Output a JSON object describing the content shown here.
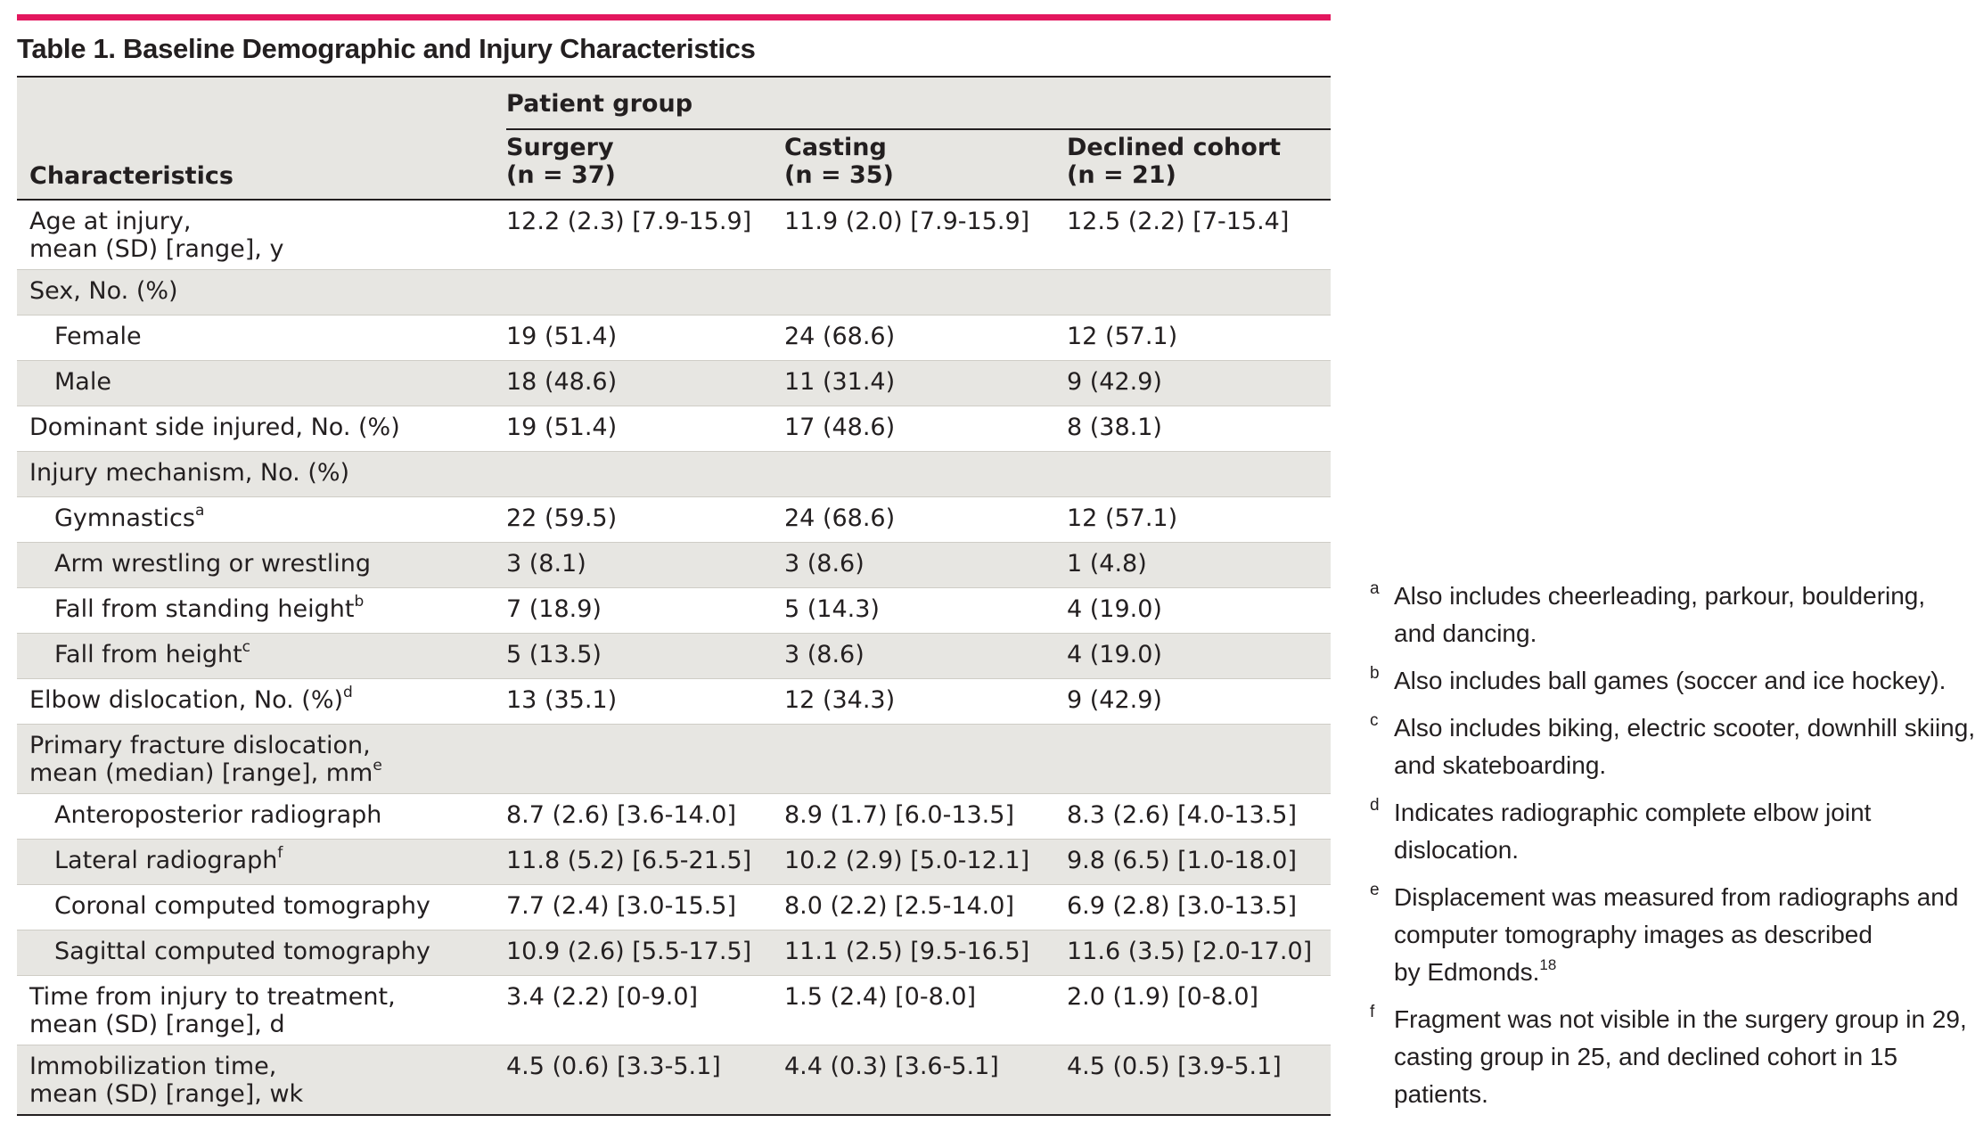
{
  "title": "Table 1. Baseline Demographic and Injury Characteristics",
  "header": {
    "characteristics": "Characteristics",
    "patient_group": "Patient group",
    "columns": [
      {
        "name": "Surgery",
        "n": "(n = 37)"
      },
      {
        "name": "Casting",
        "n": "(n = 35)"
      },
      {
        "name": "Declined cohort",
        "n": "(n = 21)"
      }
    ]
  },
  "rows": [
    {
      "label": [
        "Age at injury,",
        "mean (SD) [range], y"
      ],
      "sup": "",
      "indent": false,
      "shade": false,
      "values": [
        "12.2 (2.3) [7.9-15.9]",
        "11.9 (2.0) [7.9-15.9]",
        "12.5 (2.2) [7-15.4]"
      ]
    },
    {
      "label": [
        "Sex, No. (%)"
      ],
      "sup": "",
      "indent": false,
      "shade": true,
      "values": [
        "",
        "",
        ""
      ]
    },
    {
      "label": [
        "Female"
      ],
      "sup": "",
      "indent": true,
      "shade": false,
      "values": [
        "19 (51.4)",
        "24 (68.6)",
        "12 (57.1)"
      ]
    },
    {
      "label": [
        "Male"
      ],
      "sup": "",
      "indent": true,
      "shade": true,
      "values": [
        "18 (48.6)",
        "11 (31.4)",
        "9 (42.9)"
      ]
    },
    {
      "label": [
        "Dominant side injured, No. (%)"
      ],
      "sup": "",
      "indent": false,
      "shade": false,
      "values": [
        "19 (51.4)",
        "17 (48.6)",
        "8 (38.1)"
      ]
    },
    {
      "label": [
        "Injury mechanism, No. (%)"
      ],
      "sup": "",
      "indent": false,
      "shade": true,
      "values": [
        "",
        "",
        ""
      ]
    },
    {
      "label": [
        "Gymnastics"
      ],
      "sup": "a",
      "indent": true,
      "shade": false,
      "values": [
        "22 (59.5)",
        "24 (68.6)",
        "12 (57.1)"
      ]
    },
    {
      "label": [
        "Arm wrestling or wrestling"
      ],
      "sup": "",
      "indent": true,
      "shade": true,
      "values": [
        "3 (8.1)",
        "3 (8.6)",
        "1 (4.8)"
      ]
    },
    {
      "label": [
        "Fall from standing height"
      ],
      "sup": "b",
      "indent": true,
      "shade": false,
      "values": [
        "7 (18.9)",
        "5 (14.3)",
        "4 (19.0)"
      ]
    },
    {
      "label": [
        "Fall from height"
      ],
      "sup": "c",
      "indent": true,
      "shade": true,
      "values": [
        "5 (13.5)",
        "3 (8.6)",
        "4 (19.0)"
      ]
    },
    {
      "label": [
        "Elbow dislocation, No. (%)"
      ],
      "sup": "d",
      "indent": false,
      "shade": false,
      "values": [
        "13 (35.1)",
        "12 (34.3)",
        "9 (42.9)"
      ]
    },
    {
      "label": [
        "Primary fracture dislocation,",
        "mean (median) [range], mm"
      ],
      "sup": "e",
      "indent": false,
      "shade": true,
      "values": [
        "",
        "",
        ""
      ]
    },
    {
      "label": [
        "Anteroposterior radiograph"
      ],
      "sup": "",
      "indent": true,
      "shade": false,
      "values": [
        "8.7 (2.6) [3.6-14.0]",
        "8.9 (1.7) [6.0-13.5]",
        "8.3 (2.6) [4.0-13.5]"
      ]
    },
    {
      "label": [
        "Lateral radiograph"
      ],
      "sup": "f",
      "indent": true,
      "shade": true,
      "values": [
        "11.8 (5.2) [6.5-21.5]",
        "10.2 (2.9) [5.0-12.1]",
        "9.8 (6.5) [1.0-18.0]"
      ]
    },
    {
      "label": [
        "Coronal computed tomography"
      ],
      "sup": "",
      "indent": true,
      "shade": false,
      "values": [
        "7.7 (2.4) [3.0-15.5]",
        "8.0 (2.2) [2.5-14.0]",
        "6.9 (2.8) [3.0-13.5]"
      ]
    },
    {
      "label": [
        "Sagittal computed tomography"
      ],
      "sup": "",
      "indent": true,
      "shade": true,
      "values": [
        "10.9 (2.6) [5.5-17.5]",
        "11.1 (2.5) [9.5-16.5]",
        "11.6 (3.5) [2.0-17.0]"
      ]
    },
    {
      "label": [
        "Time from injury to treatment,",
        "mean (SD) [range], d"
      ],
      "sup": "",
      "indent": false,
      "shade": false,
      "values": [
        "3.4 (2.2) [0-9.0]",
        "1.5 (2.4) [0-8.0]",
        "2.0 (1.9) [0-8.0]"
      ]
    },
    {
      "label": [
        "Immobilization time,",
        "mean (SD) [range], wk"
      ],
      "sup": "",
      "indent": false,
      "shade": true,
      "values": [
        "4.5 (0.6) [3.3-5.1]",
        "4.4 (0.3) [3.6-5.1]",
        "4.5 (0.5) [3.9-5.1]"
      ]
    }
  ],
  "footnotes": [
    {
      "mark": "a",
      "text": [
        "Also includes cheerleading, parkour, bouldering,",
        "and dancing."
      ],
      "sup": ""
    },
    {
      "mark": "b",
      "text": [
        "Also includes ball games (soccer and ice hockey)."
      ],
      "sup": ""
    },
    {
      "mark": "c",
      "text": [
        "Also includes biking, electric scooter, downhill skiing,",
        "and skateboarding."
      ],
      "sup": ""
    },
    {
      "mark": "d",
      "text": [
        "Indicates radiographic complete elbow joint",
        "dislocation."
      ],
      "sup": ""
    },
    {
      "mark": "e",
      "text": [
        "Displacement was measured from radiographs and",
        "computer tomography images as described",
        "by Edmonds."
      ],
      "sup": "18"
    },
    {
      "mark": "f",
      "text": [
        "Fragment was not visible in the surgery group in 29,",
        "casting group in 25, and declined cohort in 15",
        "patients."
      ],
      "sup": ""
    }
  ]
}
